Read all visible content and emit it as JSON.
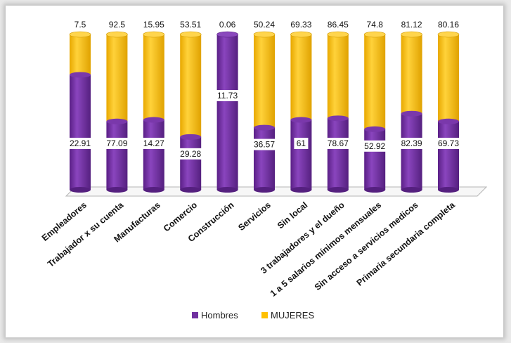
{
  "chart_data": {
    "type": "bar",
    "stacked": true,
    "percent_scale": true,
    "categories": [
      "Empleadores",
      "Trabajador x su cuenta",
      "Manufacturas",
      "Comercio",
      "Construcción",
      "Servicios",
      "Sin local",
      "3 trabajadores y el dueño",
      "1 a 5 salarios mínimos mensuales",
      "Sin acceso a servicios medicos",
      "Primaria secundaria completa"
    ],
    "series": [
      {
        "name": "Hombres",
        "color": "#7030a0",
        "values": [
          22.91,
          77.09,
          14.27,
          29.28,
          11.73,
          36.57,
          61,
          78.67,
          52.92,
          82.39,
          69.73
        ],
        "fraction_shown": [
          0.74,
          0.44,
          0.45,
          0.34,
          1.0,
          0.4,
          0.45,
          0.46,
          0.39,
          0.49,
          0.44
        ]
      },
      {
        "name": "MUJERES",
        "color": "#ffc000",
        "values": [
          7.5,
          92.5,
          15.95,
          53.51,
          0.06,
          50.24,
          69.33,
          86.45,
          74.8,
          81.12,
          80.16
        ]
      }
    ],
    "legend_position": "bottom",
    "grid": false
  }
}
